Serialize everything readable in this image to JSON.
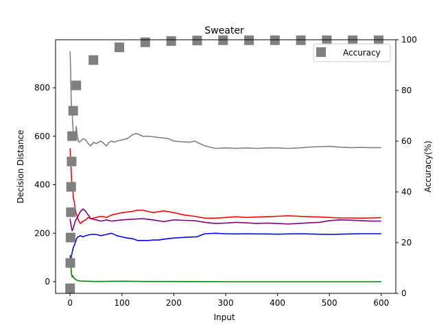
{
  "chart_data": {
    "type": "line",
    "title": "Sweater",
    "xlabel": "Input",
    "ylabel": "Decision Distance",
    "y2label": "Accuracy(%)",
    "xlim": [
      -28,
      628
    ],
    "ylim": [
      -48,
      998
    ],
    "y2lim": [
      0,
      100
    ],
    "xticks": [
      0,
      100,
      200,
      300,
      400,
      500,
      600
    ],
    "yticks": [
      0,
      200,
      400,
      600,
      800
    ],
    "y2ticks": [
      0,
      20,
      40,
      60,
      80,
      100
    ],
    "grid": false,
    "legend": {
      "position": "top-right",
      "entries": [
        "Accuracy"
      ]
    },
    "series": [
      {
        "color": "#808080",
        "axis": "left",
        "x": [
          0,
          1,
          2,
          3,
          4,
          5,
          6,
          8,
          10,
          12,
          14,
          16,
          18,
          20,
          25,
          30,
          35,
          40,
          45,
          50,
          55,
          60,
          65,
          70,
          75,
          80,
          85,
          90,
          100,
          110,
          120,
          125,
          130,
          135,
          140,
          150,
          160,
          170,
          180,
          190,
          200,
          210,
          220,
          230,
          240,
          245,
          250,
          260,
          270,
          280,
          300,
          320,
          340,
          360,
          380,
          400,
          420,
          440,
          460,
          480,
          500,
          520,
          540,
          560,
          580,
          600
        ],
        "y": [
          950,
          880,
          760,
          720,
          700,
          650,
          620,
          610,
          590,
          640,
          600,
          580,
          575,
          580,
          590,
          585,
          570,
          560,
          575,
          570,
          575,
          580,
          570,
          560,
          575,
          580,
          575,
          580,
          585,
          590,
          605,
          610,
          610,
          605,
          600,
          600,
          598,
          595,
          593,
          590,
          580,
          578,
          577,
          575,
          580,
          575,
          570,
          560,
          555,
          550,
          552,
          550,
          552,
          550,
          552,
          552,
          550,
          552,
          555,
          557,
          558,
          555,
          553,
          554,
          553,
          553
        ]
      },
      {
        "color": "#ff0000",
        "axis": "left",
        "x": [
          0,
          1,
          2,
          3,
          4,
          5,
          6,
          8,
          10,
          12,
          15,
          18,
          20,
          25,
          30,
          35,
          40,
          50,
          60,
          70,
          80,
          90,
          100,
          120,
          130,
          140,
          150,
          160,
          180,
          200,
          220,
          240,
          260,
          280,
          300,
          320,
          340,
          360,
          380,
          400,
          420,
          440,
          460,
          480,
          500,
          520,
          540,
          560,
          580,
          600
        ],
        "y": [
          550,
          500,
          460,
          420,
          380,
          410,
          350,
          330,
          300,
          280,
          260,
          245,
          240,
          250,
          255,
          265,
          260,
          265,
          270,
          265,
          275,
          280,
          285,
          290,
          295,
          295,
          290,
          285,
          292,
          285,
          275,
          270,
          262,
          262,
          265,
          268,
          265,
          267,
          268,
          270,
          272,
          270,
          268,
          267,
          265,
          263,
          263,
          262,
          263,
          264
        ]
      },
      {
        "color": "#800080",
        "axis": "left",
        "x": [
          0,
          2,
          4,
          6,
          8,
          10,
          15,
          20,
          25,
          30,
          35,
          40,
          50,
          60,
          70,
          80,
          100,
          120,
          140,
          160,
          180,
          200,
          220,
          240,
          260,
          280,
          300,
          320,
          340,
          360,
          380,
          400,
          420,
          440,
          460,
          480,
          500,
          520,
          540,
          560,
          580,
          600
        ],
        "y": [
          260,
          230,
          210,
          220,
          235,
          250,
          270,
          290,
          300,
          290,
          275,
          260,
          255,
          250,
          255,
          250,
          255,
          258,
          260,
          255,
          248,
          255,
          253,
          252,
          245,
          240,
          242,
          245,
          243,
          240,
          242,
          240,
          238,
          240,
          243,
          245,
          252,
          255,
          254,
          252,
          250,
          250
        ]
      },
      {
        "color": "#0000ff",
        "axis": "left",
        "x": [
          0,
          2,
          4,
          6,
          8,
          10,
          12,
          15,
          20,
          25,
          30,
          40,
          50,
          60,
          70,
          80,
          90,
          100,
          110,
          120,
          130,
          140,
          150,
          160,
          170,
          180,
          190,
          200,
          220,
          240,
          245,
          250,
          260,
          280,
          300,
          320,
          340,
          360,
          380,
          400,
          420,
          440,
          460,
          480,
          500,
          520,
          540,
          560,
          580,
          600
        ],
        "y": [
          80,
          100,
          120,
          140,
          150,
          160,
          175,
          185,
          190,
          185,
          190,
          195,
          195,
          190,
          195,
          200,
          190,
          185,
          180,
          178,
          170,
          170,
          170,
          172,
          172,
          175,
          178,
          180,
          183,
          185,
          185,
          190,
          198,
          200,
          198,
          197,
          198,
          197,
          197,
          196,
          197,
          198,
          197,
          196,
          195,
          196,
          197,
          198,
          198,
          198
        ]
      },
      {
        "color": "#008000",
        "axis": "left",
        "x": [
          0,
          1,
          2,
          3,
          4,
          5,
          6,
          8,
          10,
          12,
          15,
          20,
          30,
          50,
          100,
          150,
          200,
          300,
          400,
          500,
          600
        ],
        "y": [
          110,
          80,
          50,
          30,
          20,
          25,
          18,
          15,
          10,
          8,
          5,
          3,
          2,
          1,
          2,
          1,
          1,
          0,
          0,
          0,
          0
        ]
      },
      {
        "name": "Accuracy",
        "color": "#808080",
        "axis": "right",
        "style": "dashed",
        "x": [
          0,
          0.5,
          1,
          1.5,
          2,
          3,
          4,
          6,
          12,
          45,
          95,
          145,
          195,
          245,
          295,
          345,
          395,
          445,
          495,
          545,
          595
        ],
        "y": [
          2,
          12,
          22,
          32,
          42,
          52,
          62,
          72,
          82,
          92,
          97,
          99,
          99.5,
          99.7,
          99.8,
          99.8,
          99.8,
          99.8,
          99.8,
          99.8,
          99.8
        ]
      }
    ]
  }
}
